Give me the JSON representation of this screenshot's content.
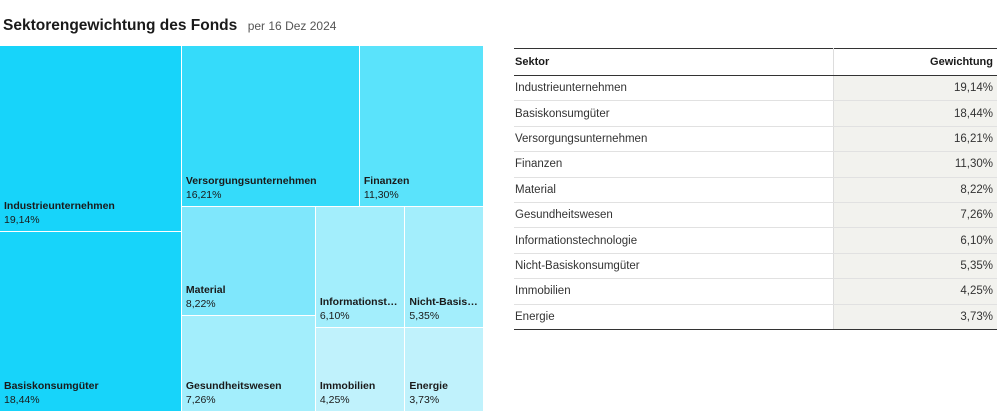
{
  "header": {
    "title": "Sektorengewichtung des Fonds",
    "subtitle": "per 16 Dez 2024"
  },
  "table": {
    "col_sector": "Sektor",
    "col_weight": "Gewichtung"
  },
  "colors": {
    "shades": [
      "#17d4fa",
      "#35dbfa",
      "#5ae3fb",
      "#7fe7fc",
      "#a3eefc",
      "#c0f2fc"
    ]
  },
  "chart_data": {
    "type": "treemap",
    "categories": [
      "Industrieunternehmen",
      "Basiskonsumgüter",
      "Versorgungsunternehmen",
      "Finanzen",
      "Material",
      "Gesundheitswesen",
      "Informationstechnologie",
      "Nicht-Basiskonsumgüter",
      "Immobilien",
      "Energie"
    ],
    "labels": [
      "Industrieunternehmen",
      "Basiskonsumgüter",
      "Versorgungsunternehmen",
      "Finanzen",
      "Material",
      "Gesundheitswesen",
      "Informationstec...",
      "Nicht-Basisk...",
      "Immobilien",
      "Energie"
    ],
    "values": [
      19.14,
      18.44,
      16.21,
      11.3,
      8.22,
      7.26,
      6.1,
      5.35,
      4.25,
      3.73
    ],
    "display_values": [
      "19,14%",
      "18,44%",
      "16,21%",
      "11,30%",
      "8,22%",
      "7,26%",
      "6,10%",
      "5,35%",
      "4,25%",
      "3,73%"
    ],
    "shade_index": [
      0,
      0,
      1,
      2,
      3,
      4,
      4,
      4,
      5,
      5
    ]
  }
}
